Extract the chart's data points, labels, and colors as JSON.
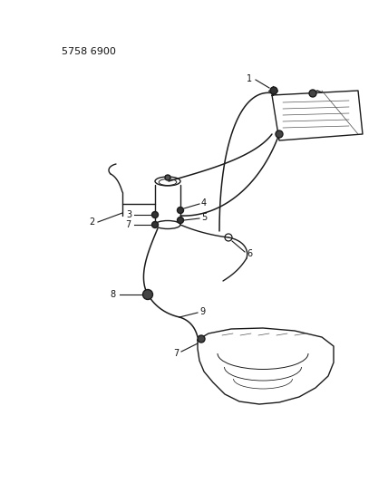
{
  "title_code": "5758 6900",
  "bg_color": "#ffffff",
  "line_color": "#1a1a1a",
  "label_color": "#111111",
  "fig_width": 4.28,
  "fig_height": 5.33,
  "dpi": 100
}
